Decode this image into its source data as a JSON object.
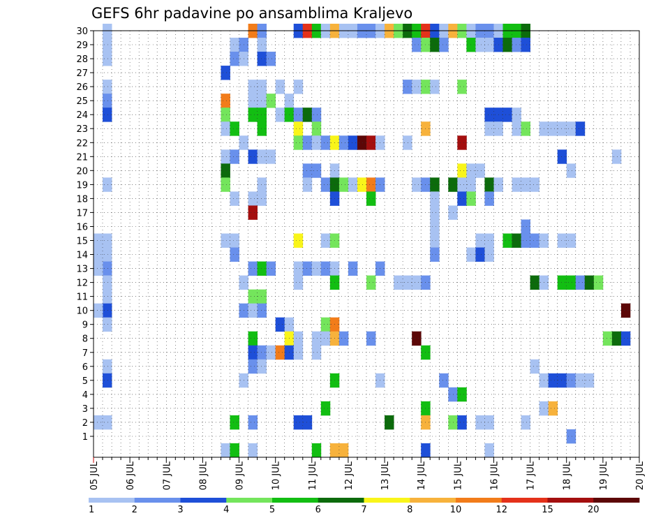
{
  "chart_data": {
    "type": "heatmap",
    "title": "GEFS 6hr padavine po ansamblima Kraljevo",
    "xlabel": "",
    "ylabel": "",
    "x_tick_labels": [
      "05 JUL",
      "06 JUL",
      "07 JUL",
      "08 JUL",
      "09 JUL",
      "10 JUL",
      "11 JUL",
      "12 JUL",
      "13 JUL",
      "14 JUL",
      "15 JUL",
      "16 JUL",
      "17 JUL",
      "18 JUL",
      "19 JUL",
      "20 JUL"
    ],
    "y_tick_labels": [
      "1",
      "2",
      "3",
      "4",
      "5",
      "6",
      "7",
      "8",
      "9",
      "10",
      "11",
      "12",
      "13",
      "14",
      "15",
      "16",
      "17",
      "18",
      "19",
      "20",
      "21",
      "22",
      "23",
      "24",
      "25",
      "26",
      "27",
      "28",
      "29",
      "30"
    ],
    "time_steps": 60,
    "members": 30,
    "grid": true,
    "colorbar": {
      "labels": [
        "1",
        "2",
        "3",
        "4",
        "5",
        "6",
        "7",
        "8",
        "10",
        "12",
        "15",
        "20"
      ],
      "colors": [
        "#a8c2f2",
        "#6990ec",
        "#1e4fd8",
        "#74e55c",
        "#12be12",
        "#0c6b0c",
        "#f9f51a",
        "#f7b23c",
        "#f27c1a",
        "#e4311a",
        "#a40f0f",
        "#5c0707"
      ]
    },
    "cells": [
      [
        1,
        30,
        1
      ],
      [
        1,
        29,
        1
      ],
      [
        1,
        28,
        1
      ],
      [
        1,
        26,
        1
      ],
      [
        1,
        25,
        2
      ],
      [
        1,
        24,
        3
      ],
      [
        1,
        19,
        1
      ],
      [
        1,
        15,
        1
      ],
      [
        1,
        14,
        1
      ],
      [
        1,
        13,
        2
      ],
      [
        1,
        12,
        1
      ],
      [
        1,
        11,
        1
      ],
      [
        1,
        10,
        3
      ],
      [
        1,
        9,
        1
      ],
      [
        1,
        6,
        1
      ],
      [
        1,
        5,
        3
      ],
      [
        1,
        2,
        1
      ],
      [
        0,
        15,
        1
      ],
      [
        0,
        14,
        1
      ],
      [
        0,
        13,
        1
      ],
      [
        0,
        10,
        1
      ],
      [
        0,
        2,
        1
      ],
      [
        17,
        30,
        9
      ],
      [
        18,
        30,
        2
      ],
      [
        22,
        30,
        3
      ],
      [
        23,
        30,
        10
      ],
      [
        24,
        30,
        5
      ],
      [
        25,
        30,
        1
      ],
      [
        26,
        30,
        8
      ],
      [
        27,
        30,
        1
      ],
      [
        28,
        30,
        1
      ],
      [
        29,
        30,
        2
      ],
      [
        30,
        30,
        2
      ],
      [
        31,
        30,
        1
      ],
      [
        32,
        30,
        8
      ],
      [
        33,
        30,
        4
      ],
      [
        34,
        30,
        6
      ],
      [
        35,
        30,
        5
      ],
      [
        36,
        30,
        10
      ],
      [
        37,
        30,
        3
      ],
      [
        38,
        30,
        1
      ],
      [
        39,
        30,
        8
      ],
      [
        40,
        30,
        4
      ],
      [
        41,
        30,
        1
      ],
      [
        42,
        30,
        2
      ],
      [
        43,
        30,
        2
      ],
      [
        44,
        30,
        1
      ],
      [
        45,
        30,
        5
      ],
      [
        46,
        30,
        5
      ],
      [
        47,
        30,
        6
      ],
      [
        15,
        29,
        1
      ],
      [
        16,
        29,
        2
      ],
      [
        18,
        29,
        1
      ],
      [
        35,
        29,
        2
      ],
      [
        36,
        29,
        4
      ],
      [
        37,
        29,
        6
      ],
      [
        38,
        29,
        2
      ],
      [
        41,
        29,
        5
      ],
      [
        42,
        29,
        1
      ],
      [
        43,
        29,
        1
      ],
      [
        44,
        29,
        3
      ],
      [
        45,
        29,
        6
      ],
      [
        46,
        29,
        2
      ],
      [
        47,
        29,
        3
      ],
      [
        15,
        28,
        2
      ],
      [
        16,
        28,
        1
      ],
      [
        18,
        28,
        3
      ],
      [
        19,
        28,
        2
      ],
      [
        14,
        27,
        3
      ],
      [
        17,
        26,
        1
      ],
      [
        18,
        26,
        1
      ],
      [
        20,
        26,
        1
      ],
      [
        22,
        26,
        1
      ],
      [
        34,
        26,
        2
      ],
      [
        35,
        26,
        1
      ],
      [
        36,
        26,
        4
      ],
      [
        37,
        26,
        1
      ],
      [
        40,
        26,
        4
      ],
      [
        14,
        25,
        9
      ],
      [
        17,
        25,
        1
      ],
      [
        18,
        25,
        1
      ],
      [
        19,
        25,
        4
      ],
      [
        21,
        25,
        1
      ],
      [
        14,
        24,
        4
      ],
      [
        17,
        24,
        5
      ],
      [
        18,
        24,
        5
      ],
      [
        20,
        24,
        1
      ],
      [
        21,
        24,
        5
      ],
      [
        22,
        24,
        2
      ],
      [
        23,
        24,
        6
      ],
      [
        24,
        24,
        2
      ],
      [
        43,
        24,
        3
      ],
      [
        44,
        24,
        3
      ],
      [
        45,
        24,
        3
      ],
      [
        46,
        24,
        1
      ],
      [
        14,
        23,
        1
      ],
      [
        15,
        23,
        5
      ],
      [
        18,
        23,
        5
      ],
      [
        22,
        23,
        7
      ],
      [
        24,
        23,
        4
      ],
      [
        36,
        23,
        8
      ],
      [
        43,
        23,
        1
      ],
      [
        44,
        23,
        1
      ],
      [
        46,
        23,
        1
      ],
      [
        47,
        23,
        4
      ],
      [
        49,
        23,
        1
      ],
      [
        50,
        23,
        1
      ],
      [
        51,
        23,
        1
      ],
      [
        52,
        23,
        1
      ],
      [
        53,
        23,
        3
      ],
      [
        16,
        22,
        1
      ],
      [
        22,
        22,
        4
      ],
      [
        23,
        22,
        2
      ],
      [
        24,
        22,
        1
      ],
      [
        25,
        22,
        2
      ],
      [
        26,
        22,
        7
      ],
      [
        27,
        22,
        2
      ],
      [
        28,
        22,
        3
      ],
      [
        29,
        22,
        12
      ],
      [
        30,
        22,
        11
      ],
      [
        31,
        22,
        1
      ],
      [
        34,
        22,
        1
      ],
      [
        40,
        22,
        11
      ],
      [
        14,
        21,
        1
      ],
      [
        15,
        21,
        2
      ],
      [
        17,
        21,
        3
      ],
      [
        18,
        21,
        1
      ],
      [
        19,
        21,
        1
      ],
      [
        51,
        21,
        3
      ],
      [
        57,
        21,
        1
      ],
      [
        14,
        20,
        6
      ],
      [
        23,
        20,
        2
      ],
      [
        24,
        20,
        2
      ],
      [
        26,
        20,
        1
      ],
      [
        40,
        20,
        7
      ],
      [
        41,
        20,
        1
      ],
      [
        42,
        20,
        1
      ],
      [
        52,
        20,
        1
      ],
      [
        14,
        19,
        4
      ],
      [
        18,
        19,
        1
      ],
      [
        23,
        19,
        1
      ],
      [
        25,
        19,
        2
      ],
      [
        26,
        19,
        6
      ],
      [
        27,
        19,
        4
      ],
      [
        28,
        19,
        1
      ],
      [
        29,
        19,
        7
      ],
      [
        30,
        19,
        9
      ],
      [
        31,
        19,
        2
      ],
      [
        35,
        19,
        1
      ],
      [
        36,
        19,
        2
      ],
      [
        37,
        19,
        6
      ],
      [
        39,
        19,
        6
      ],
      [
        40,
        19,
        1
      ],
      [
        41,
        19,
        1
      ],
      [
        43,
        19,
        6
      ],
      [
        44,
        19,
        1
      ],
      [
        46,
        19,
        1
      ],
      [
        47,
        19,
        1
      ],
      [
        48,
        19,
        1
      ],
      [
        15,
        18,
        1
      ],
      [
        17,
        18,
        1
      ],
      [
        18,
        18,
        1
      ],
      [
        26,
        18,
        3
      ],
      [
        30,
        18,
        5
      ],
      [
        37,
        18,
        1
      ],
      [
        40,
        18,
        3
      ],
      [
        41,
        18,
        4
      ],
      [
        43,
        18,
        2
      ],
      [
        17,
        17,
        11
      ],
      [
        37,
        17,
        1
      ],
      [
        39,
        17,
        1
      ],
      [
        37,
        16,
        1
      ],
      [
        47,
        16,
        2
      ],
      [
        14,
        15,
        1
      ],
      [
        15,
        15,
        1
      ],
      [
        22,
        15,
        7
      ],
      [
        25,
        15,
        1
      ],
      [
        26,
        15,
        4
      ],
      [
        37,
        15,
        1
      ],
      [
        42,
        15,
        1
      ],
      [
        43,
        15,
        1
      ],
      [
        45,
        15,
        5
      ],
      [
        46,
        15,
        6
      ],
      [
        47,
        15,
        2
      ],
      [
        48,
        15,
        2
      ],
      [
        49,
        15,
        1
      ],
      [
        51,
        15,
        1
      ],
      [
        52,
        15,
        1
      ],
      [
        15,
        14,
        2
      ],
      [
        37,
        14,
        2
      ],
      [
        41,
        14,
        1
      ],
      [
        42,
        14,
        3
      ],
      [
        43,
        14,
        1
      ],
      [
        17,
        13,
        2
      ],
      [
        18,
        13,
        5
      ],
      [
        19,
        13,
        2
      ],
      [
        22,
        13,
        1
      ],
      [
        23,
        13,
        2
      ],
      [
        24,
        13,
        1
      ],
      [
        25,
        13,
        2
      ],
      [
        26,
        13,
        1
      ],
      [
        28,
        13,
        2
      ],
      [
        31,
        13,
        2
      ],
      [
        16,
        12,
        1
      ],
      [
        22,
        12,
        1
      ],
      [
        26,
        12,
        5
      ],
      [
        30,
        12,
        4
      ],
      [
        33,
        12,
        1
      ],
      [
        34,
        12,
        1
      ],
      [
        35,
        12,
        1
      ],
      [
        36,
        12,
        2
      ],
      [
        48,
        12,
        6
      ],
      [
        49,
        12,
        1
      ],
      [
        51,
        12,
        5
      ],
      [
        52,
        12,
        5
      ],
      [
        53,
        12,
        2
      ],
      [
        54,
        12,
        6
      ],
      [
        55,
        12,
        4
      ],
      [
        17,
        11,
        4
      ],
      [
        18,
        11,
        4
      ],
      [
        16,
        10,
        2
      ],
      [
        17,
        10,
        1
      ],
      [
        18,
        10,
        2
      ],
      [
        58,
        10,
        12
      ],
      [
        20,
        9,
        3
      ],
      [
        21,
        9,
        1
      ],
      [
        25,
        9,
        4
      ],
      [
        26,
        9,
        9
      ],
      [
        17,
        8,
        5
      ],
      [
        21,
        8,
        7
      ],
      [
        22,
        8,
        1
      ],
      [
        24,
        8,
        1
      ],
      [
        25,
        8,
        1
      ],
      [
        26,
        8,
        8
      ],
      [
        27,
        8,
        2
      ],
      [
        30,
        8,
        2
      ],
      [
        35,
        8,
        12
      ],
      [
        56,
        8,
        4
      ],
      [
        57,
        8,
        6
      ],
      [
        58,
        8,
        3
      ],
      [
        17,
        7,
        3
      ],
      [
        18,
        7,
        2
      ],
      [
        19,
        7,
        1
      ],
      [
        20,
        7,
        9
      ],
      [
        21,
        7,
        3
      ],
      [
        22,
        7,
        1
      ],
      [
        24,
        7,
        1
      ],
      [
        36,
        7,
        5
      ],
      [
        17,
        6,
        2
      ],
      [
        18,
        6,
        1
      ],
      [
        48,
        6,
        1
      ],
      [
        16,
        5,
        1
      ],
      [
        26,
        5,
        5
      ],
      [
        31,
        5,
        1
      ],
      [
        38,
        5,
        2
      ],
      [
        49,
        5,
        1
      ],
      [
        50,
        5,
        3
      ],
      [
        51,
        5,
        3
      ],
      [
        52,
        5,
        2
      ],
      [
        53,
        5,
        1
      ],
      [
        54,
        5,
        1
      ],
      [
        39,
        4,
        2
      ],
      [
        40,
        4,
        5
      ],
      [
        25,
        3,
        5
      ],
      [
        36,
        3,
        5
      ],
      [
        49,
        3,
        1
      ],
      [
        50,
        3,
        8
      ],
      [
        15,
        2,
        5
      ],
      [
        17,
        2,
        2
      ],
      [
        22,
        2,
        3
      ],
      [
        23,
        2,
        3
      ],
      [
        32,
        2,
        6
      ],
      [
        36,
        2,
        8
      ],
      [
        39,
        2,
        4
      ],
      [
        40,
        2,
        3
      ],
      [
        42,
        2,
        1
      ],
      [
        43,
        2,
        1
      ],
      [
        47,
        2,
        1
      ],
      [
        52,
        1,
        2
      ],
      [
        14,
        0,
        1
      ],
      [
        15,
        0,
        5
      ],
      [
        17,
        0,
        1
      ],
      [
        24,
        0,
        5
      ],
      [
        26,
        0,
        8
      ],
      [
        27,
        0,
        8
      ],
      [
        36,
        0,
        3
      ],
      [
        43,
        0,
        1
      ]
    ]
  }
}
